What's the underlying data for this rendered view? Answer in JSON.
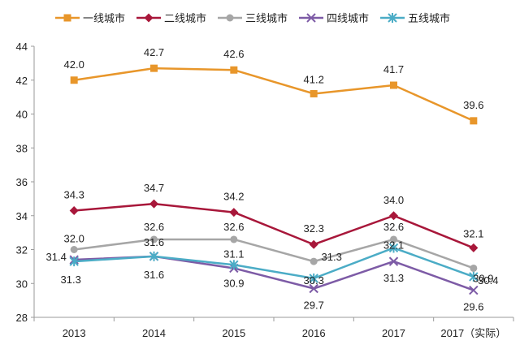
{
  "chart_data": {
    "type": "line",
    "categories": [
      "2013",
      "2014",
      "2015",
      "2016",
      "2017",
      "2017（实际）"
    ],
    "ylim": [
      28,
      44
    ],
    "yticks": [
      28,
      30,
      32,
      34,
      36,
      38,
      40,
      42,
      44
    ],
    "grid": false,
    "legend_position": "top",
    "series": [
      {
        "name": "一线城市",
        "values": [
          42.0,
          42.7,
          42.6,
          41.2,
          41.7,
          39.6
        ],
        "labels": [
          "42.0",
          "42.7",
          "42.6",
          "41.2",
          "41.7",
          "39.6"
        ],
        "color": "#E8962A",
        "marker": "square"
      },
      {
        "name": "二线城市",
        "values": [
          34.3,
          34.7,
          34.2,
          32.3,
          34.0,
          32.1
        ],
        "labels": [
          "34.3",
          "34.7",
          "34.2",
          "32.3",
          "34.0",
          "32.1"
        ],
        "color": "#A8173A",
        "marker": "diamond"
      },
      {
        "name": "三线城市",
        "values": [
          32.0,
          32.6,
          32.6,
          31.3,
          32.6,
          30.9
        ],
        "labels": [
          "32.0",
          "32.6",
          "32.6",
          "31.3",
          "32.6",
          "30.9"
        ],
        "color": "#A6A6A6",
        "marker": "circle"
      },
      {
        "name": "四线城市",
        "values": [
          31.4,
          31.6,
          30.9,
          29.7,
          31.3,
          29.6
        ],
        "labels": [
          "31.4",
          "31.6",
          "30.9",
          "29.7",
          "31.3",
          "29.6"
        ],
        "color": "#7D5BA6",
        "marker": "x"
      },
      {
        "name": "五线城市",
        "values": [
          31.3,
          31.6,
          31.1,
          30.3,
          32.1,
          30.4
        ],
        "labels": [
          "31.3",
          "31.6",
          "31.1",
          "30.3",
          "32.1",
          "30.4"
        ],
        "color": "#4BACC6",
        "marker": "asterisk"
      }
    ]
  }
}
